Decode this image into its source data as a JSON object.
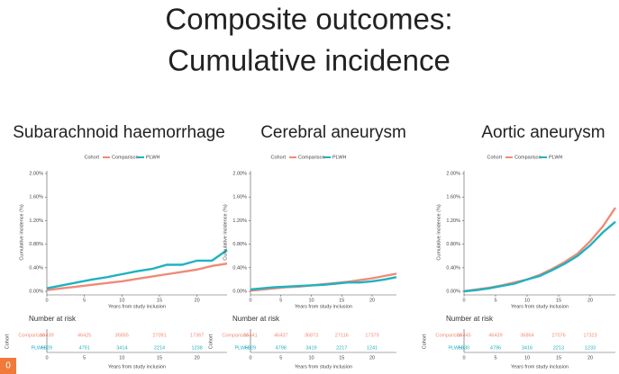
{
  "slide_title": [
    "Composite outcomes:",
    "Cumulative incidence"
  ],
  "badge": "0",
  "chart_data": [
    {
      "type": "line",
      "title": "Subarachnoid haemorrhage",
      "legend_title": "Cohort",
      "xlabel": "Years from study inclusion",
      "ylabel": "Cumulative incidence (%)",
      "x": [
        0,
        2,
        4,
        6,
        8,
        10,
        12,
        14,
        16,
        18,
        20,
        22,
        24
      ],
      "series": [
        {
          "name": "Comparison",
          "color": "#f08a78",
          "values": [
            0.02,
            0.05,
            0.08,
            0.11,
            0.14,
            0.17,
            0.21,
            0.25,
            0.29,
            0.33,
            0.37,
            0.43,
            0.47
          ]
        },
        {
          "name": "PLWH",
          "color": "#1fb2bf",
          "values": [
            0.05,
            0.1,
            0.15,
            0.2,
            0.24,
            0.29,
            0.34,
            0.38,
            0.45,
            0.45,
            0.52,
            0.52,
            0.7
          ]
        }
      ],
      "xlim": [
        0,
        24
      ],
      "xticks": [
        0,
        5,
        10,
        15,
        20
      ],
      "ylim": [
        0,
        2
      ],
      "yticks": [
        {
          "value": 0,
          "label": "0.00%"
        },
        {
          "value": 0.4,
          "label": "0.40%"
        },
        {
          "value": 0.8,
          "label": "0.80%"
        },
        {
          "value": 1.2,
          "label": "1.20%"
        },
        {
          "value": 1.6,
          "label": "1.60%"
        },
        {
          "value": 2,
          "label": "2.00%"
        }
      ],
      "risk_table": {
        "title": "Number at risk",
        "group_label": "Cohort",
        "rows": [
          {
            "name": "Comparison",
            "values": [
              56439,
              46425,
              36855,
              27091,
              17367
            ]
          },
          {
            "name": "PLWH",
            "values": [
              6929,
              4791,
              3414,
              2214,
              1238
            ]
          }
        ]
      }
    },
    {
      "type": "line",
      "title": "Cerebral aneurysm",
      "legend_title": "Cohort",
      "xlabel": "Years from study inclusion",
      "ylabel": "Cumulative incidence (%)",
      "x": [
        0,
        2,
        4,
        6,
        8,
        10,
        12,
        14,
        16,
        18,
        20,
        22,
        24
      ],
      "series": [
        {
          "name": "Comparison",
          "color": "#f08a78",
          "values": [
            0.01,
            0.03,
            0.05,
            0.07,
            0.08,
            0.1,
            0.12,
            0.14,
            0.16,
            0.19,
            0.22,
            0.26,
            0.3
          ]
        },
        {
          "name": "PLWH",
          "color": "#1fb2bf",
          "values": [
            0.03,
            0.05,
            0.07,
            0.08,
            0.09,
            0.1,
            0.11,
            0.13,
            0.15,
            0.15,
            0.17,
            0.2,
            0.24
          ]
        }
      ],
      "xlim": [
        0,
        24
      ],
      "xticks": [
        0,
        5,
        10,
        15,
        20
      ],
      "ylim": [
        0,
        2
      ],
      "yticks": [
        {
          "value": 0,
          "label": "0.00%"
        },
        {
          "value": 0.4,
          "label": "0.40%"
        },
        {
          "value": 0.8,
          "label": "0.80%"
        },
        {
          "value": 1.2,
          "label": "1.20%"
        },
        {
          "value": 1.6,
          "label": "1.60%"
        },
        {
          "value": 2,
          "label": "2.00%"
        }
      ],
      "risk_table": {
        "title": "Number at risk",
        "group_label": "Cohort",
        "rows": [
          {
            "name": "Comparison",
            "values": [
              56441,
              46437,
              36873,
              27116,
              17379
            ]
          },
          {
            "name": "PLWH",
            "values": [
              6929,
              4798,
              3419,
              2217,
              1241
            ]
          }
        ]
      }
    },
    {
      "type": "line",
      "title": "Aortic aneurysm",
      "legend_title": "Cohort",
      "xlabel": "Years from study inclusion",
      "ylabel": "Cumulative incidence (%)",
      "x": [
        0,
        2,
        4,
        6,
        8,
        10,
        12,
        14,
        16,
        18,
        20,
        22,
        24
      ],
      "series": [
        {
          "name": "Comparison",
          "color": "#f08a78",
          "values": [
            0,
            0.03,
            0.06,
            0.1,
            0.15,
            0.2,
            0.28,
            0.38,
            0.5,
            0.64,
            0.85,
            1.1,
            1.42
          ]
        },
        {
          "name": "PLWH",
          "color": "#1fb2bf",
          "values": [
            0,
            0.02,
            0.05,
            0.09,
            0.13,
            0.2,
            0.26,
            0.36,
            0.47,
            0.6,
            0.78,
            1.0,
            1.18
          ]
        }
      ],
      "xlim": [
        0,
        24
      ],
      "xticks": [
        0,
        5,
        10,
        15,
        20
      ],
      "ylim": [
        0,
        2
      ],
      "yticks": [
        {
          "value": 0,
          "label": "0.00%"
        },
        {
          "value": 0.4,
          "label": "0.40%"
        },
        {
          "value": 0.8,
          "label": "0.80%"
        },
        {
          "value": 1.2,
          "label": "1.20%"
        },
        {
          "value": 1.6,
          "label": "1.60%"
        },
        {
          "value": 2,
          "label": "2.00%"
        }
      ],
      "risk_table": {
        "title": "Number at risk",
        "group_label": "Cohort",
        "rows": [
          {
            "name": "Comparison",
            "values": [
              56445,
              46439,
              36864,
              27076,
              17323
            ]
          },
          {
            "name": "PLWH",
            "values": [
              6930,
              4796,
              3416,
              2213,
              1233
            ]
          }
        ]
      }
    }
  ]
}
